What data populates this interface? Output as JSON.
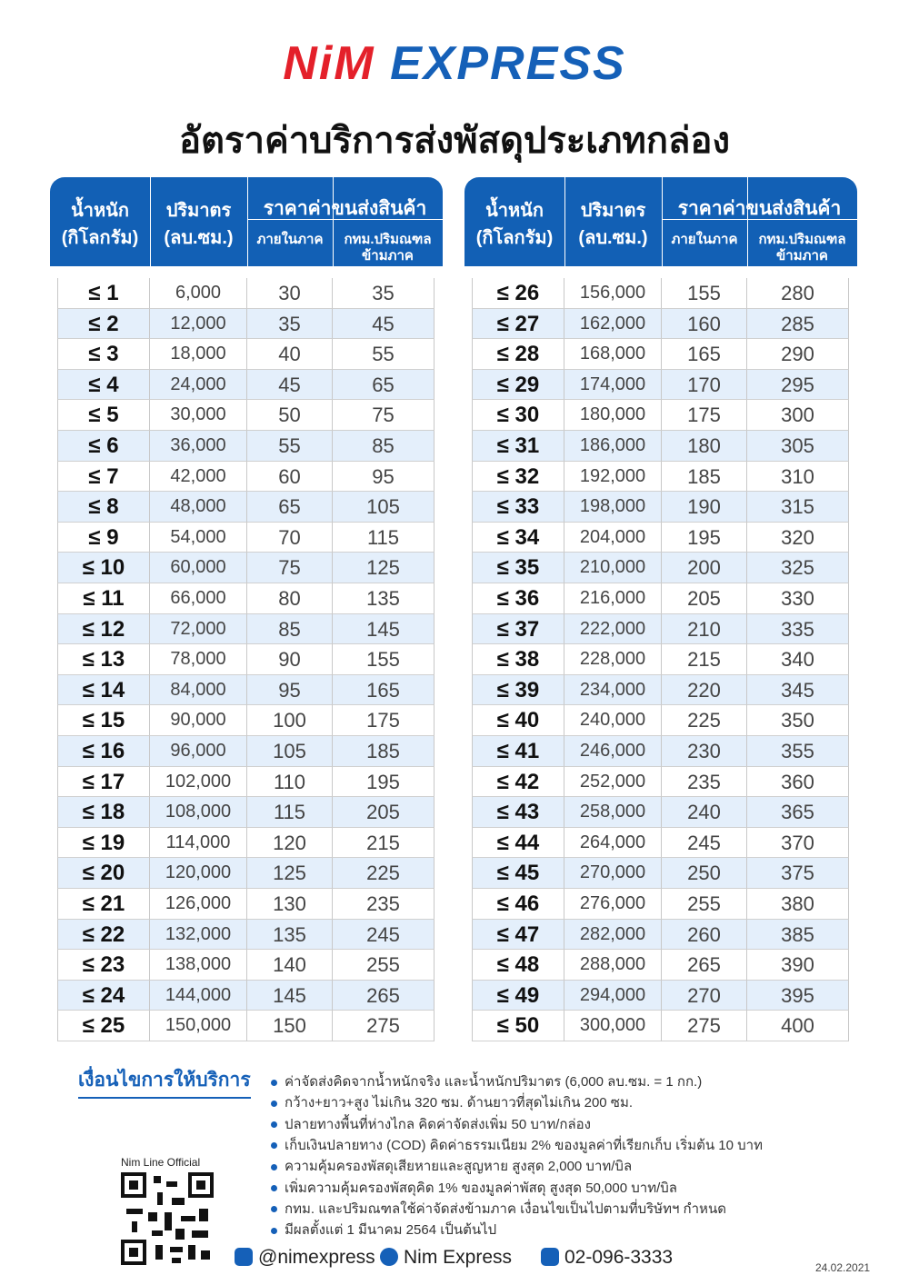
{
  "logo": {
    "brand": "NiM",
    "brand2": "EXPRESS"
  },
  "title": "อัตราค่าบริการส่งพัสดุประเภทกล่อง",
  "header": {
    "weight": "น้ำหนัก",
    "weight_unit": "(กิโลกรัม)",
    "volume": "ปริมาตร",
    "volume_unit": "(ลบ.ซม.)",
    "price": "ราคาค่าขนส่งสินค้า",
    "local": "ภายในภาค",
    "cross_1": "กทม.ปริมณฑล",
    "cross_2": "ข้ามภาค"
  },
  "tables": [
    {
      "rows": [
        [
          "≤ 1",
          "6,000",
          "30",
          "35"
        ],
        [
          "≤ 2",
          "12,000",
          "35",
          "45"
        ],
        [
          "≤ 3",
          "18,000",
          "40",
          "55"
        ],
        [
          "≤ 4",
          "24,000",
          "45",
          "65"
        ],
        [
          "≤ 5",
          "30,000",
          "50",
          "75"
        ],
        [
          "≤ 6",
          "36,000",
          "55",
          "85"
        ],
        [
          "≤ 7",
          "42,000",
          "60",
          "95"
        ],
        [
          "≤ 8",
          "48,000",
          "65",
          "105"
        ],
        [
          "≤ 9",
          "54,000",
          "70",
          "115"
        ],
        [
          "≤ 10",
          "60,000",
          "75",
          "125"
        ],
        [
          "≤ 11",
          "66,000",
          "80",
          "135"
        ],
        [
          "≤ 12",
          "72,000",
          "85",
          "145"
        ],
        [
          "≤ 13",
          "78,000",
          "90",
          "155"
        ],
        [
          "≤ 14",
          "84,000",
          "95",
          "165"
        ],
        [
          "≤ 15",
          "90,000",
          "100",
          "175"
        ],
        [
          "≤ 16",
          "96,000",
          "105",
          "185"
        ],
        [
          "≤ 17",
          "102,000",
          "110",
          "195"
        ],
        [
          "≤ 18",
          "108,000",
          "115",
          "205"
        ],
        [
          "≤ 19",
          "114,000",
          "120",
          "215"
        ],
        [
          "≤ 20",
          "120,000",
          "125",
          "225"
        ],
        [
          "≤ 21",
          "126,000",
          "130",
          "235"
        ],
        [
          "≤ 22",
          "132,000",
          "135",
          "245"
        ],
        [
          "≤ 23",
          "138,000",
          "140",
          "255"
        ],
        [
          "≤ 24",
          "144,000",
          "145",
          "265"
        ],
        [
          "≤ 25",
          "150,000",
          "150",
          "275"
        ]
      ]
    },
    {
      "rows": [
        [
          "≤ 26",
          "156,000",
          "155",
          "280"
        ],
        [
          "≤ 27",
          "162,000",
          "160",
          "285"
        ],
        [
          "≤ 28",
          "168,000",
          "165",
          "290"
        ],
        [
          "≤ 29",
          "174,000",
          "170",
          "295"
        ],
        [
          "≤ 30",
          "180,000",
          "175",
          "300"
        ],
        [
          "≤ 31",
          "186,000",
          "180",
          "305"
        ],
        [
          "≤ 32",
          "192,000",
          "185",
          "310"
        ],
        [
          "≤ 33",
          "198,000",
          "190",
          "315"
        ],
        [
          "≤ 34",
          "204,000",
          "195",
          "320"
        ],
        [
          "≤ 35",
          "210,000",
          "200",
          "325"
        ],
        [
          "≤ 36",
          "216,000",
          "205",
          "330"
        ],
        [
          "≤ 37",
          "222,000",
          "210",
          "335"
        ],
        [
          "≤ 38",
          "228,000",
          "215",
          "340"
        ],
        [
          "≤ 39",
          "234,000",
          "220",
          "345"
        ],
        [
          "≤ 40",
          "240,000",
          "225",
          "350"
        ],
        [
          "≤ 41",
          "246,000",
          "230",
          "355"
        ],
        [
          "≤ 42",
          "252,000",
          "235",
          "360"
        ],
        [
          "≤ 43",
          "258,000",
          "240",
          "365"
        ],
        [
          "≤ 44",
          "264,000",
          "245",
          "370"
        ],
        [
          "≤ 45",
          "270,000",
          "250",
          "375"
        ],
        [
          "≤ 46",
          "276,000",
          "255",
          "380"
        ],
        [
          "≤ 47",
          "282,000",
          "260",
          "385"
        ],
        [
          "≤ 48",
          "288,000",
          "265",
          "390"
        ],
        [
          "≤ 49",
          "294,000",
          "270",
          "395"
        ],
        [
          "≤ 50",
          "300,000",
          "275",
          "400"
        ]
      ]
    }
  ],
  "conditions": {
    "heading": "เงื่อนไขการให้บริการ",
    "items": [
      "ค่าจัดส่งคิดจากน้ำหนักจริง และน้ำหนักปริมาตร (6,000 ลบ.ซม. = 1 กก.)",
      "กว้าง+ยาว+สูง ไม่เกิน 320 ซม. ด้านยาวที่สุดไม่เกิน 200 ซม.",
      "ปลายทางพื้นที่ห่างไกล คิดค่าจัดส่งเพิ่ม 50 บาท/กล่อง",
      "เก็บเงินปลายทาง (COD) คิดค่าธรรมเนียม 2% ของมูลค่าที่เรียกเก็บ เริ่มต้น 10 บาท",
      "ความคุ้มครองพัสดุเสียหายและสูญหาย สูงสุด 2,000 บาท/บิล",
      "เพิ่มความคุ้มครองพัสดุคิด 1% ของมูลค่าพัสดุ สูงสุด 50,000 บาท/บิล",
      "กทม. และปริมณฑลใช้ค่าจัดส่งข้ามภาค เงื่อนไขเป็นไปตามที่บริษัทฯ กำหนด",
      "มีผลตั้งแต่ 1 มีนาคม 2564 เป็นต้นไป"
    ]
  },
  "qr_label": "Nim Line Official",
  "contacts": {
    "line": "@nimexpress",
    "facebook": "Nim Express",
    "phone": "02-096-3333"
  },
  "date": "24.02.2021"
}
